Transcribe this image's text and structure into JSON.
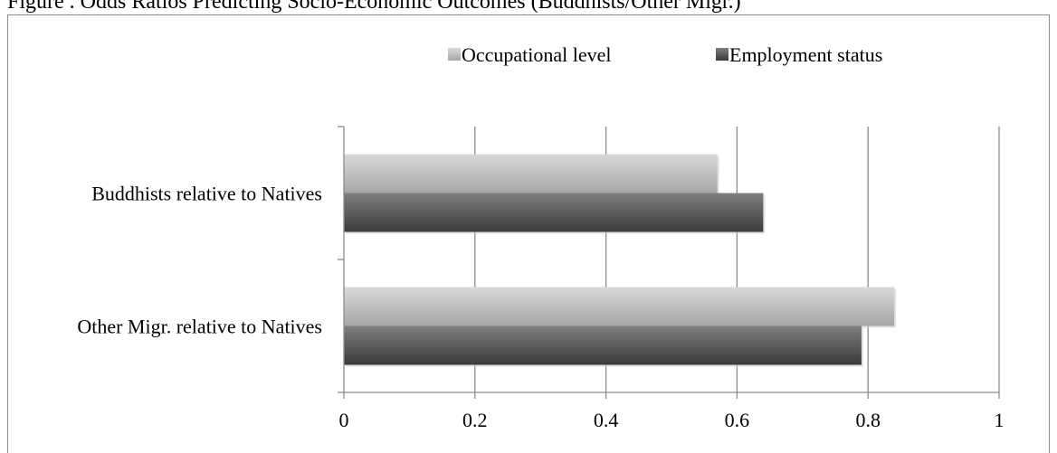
{
  "caption": "Figure  . Odds Ratios Predicting Socio-Economic Outcomes (Buddhists/Other Migr.)",
  "chart_data": {
    "type": "bar",
    "orientation": "horizontal",
    "categories": [
      "Buddhists relative to Natives",
      "Other Migr. relative to Natives"
    ],
    "series": [
      {
        "name": "Occupational level",
        "values": [
          0.57,
          0.84
        ]
      },
      {
        "name": "Employment status",
        "values": [
          0.64,
          0.79
        ]
      }
    ],
    "xlim": [
      0,
      1
    ],
    "xticks": [
      "0",
      "0.2",
      "0.4",
      "0.6",
      "0.8",
      "1"
    ],
    "xtick_values": [
      0,
      0.2,
      0.4,
      0.6,
      0.8,
      1
    ],
    "grid": true,
    "legend_position": "top",
    "colors": {
      "occupational_level_light": "#d6d6d6",
      "occupational_level_dark": "#a8a8a8",
      "employment_status_light": "#7a7a7a",
      "employment_status_dark": "#3d3d3d",
      "gridline": "#8c8c8c"
    }
  }
}
